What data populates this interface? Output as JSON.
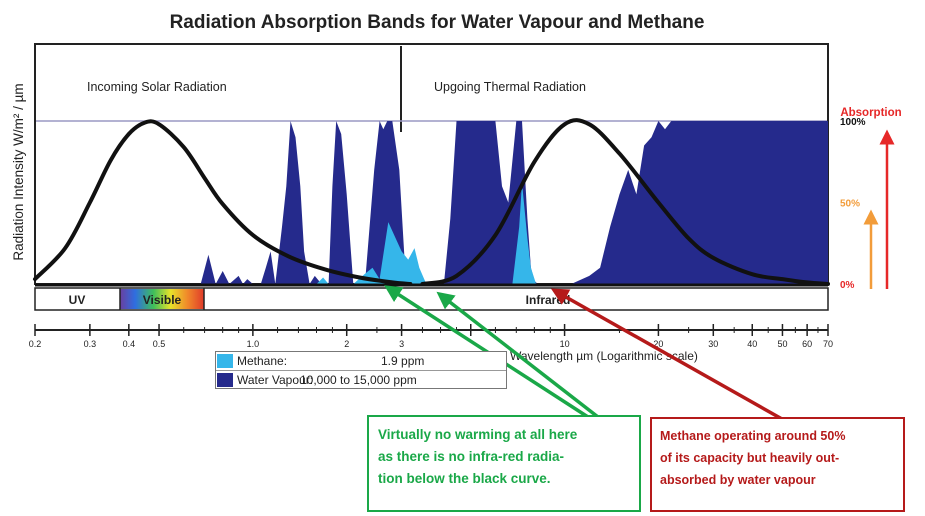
{
  "chart_data": {
    "type": "area",
    "title": "Radiation Absorption Bands for Water Vapour and Methane",
    "ylabel": "Radiation Intensity W/m² / µm",
    "xlabel": "Wavelength µm (Logarithmic scale)",
    "xscale": "log",
    "xlim": [
      0.2,
      70
    ],
    "x_ticks": [
      0.2,
      0.3,
      0.4,
      0.5,
      1.0,
      2,
      3,
      5,
      10,
      20,
      30,
      40,
      50,
      60,
      70
    ],
    "x_tick_labels": [
      "0.2",
      "0.3",
      "0.4",
      "0.5",
      "1.0",
      "2",
      "3",
      "",
      "10",
      "20",
      "30",
      "40",
      "50",
      "60",
      "70"
    ],
    "absorption_axis": {
      "title": "Absorption",
      "ticks": [
        {
          "value": 100,
          "label": "100%"
        },
        {
          "value": 50,
          "label": "50%"
        },
        {
          "value": 0,
          "label": "0%"
        }
      ]
    },
    "region_labels": [
      "Incoming Solar Radiation",
      "Upgoing Thermal Radiation"
    ],
    "band_labels": [
      "UV",
      "Visible",
      "Infrared"
    ],
    "band_edges_um": [
      0.2,
      0.4,
      0.7,
      70
    ],
    "curves": [
      {
        "name": "Solar emission (relative)",
        "x": [
          0.2,
          0.25,
          0.3,
          0.35,
          0.4,
          0.45,
          0.5,
          0.6,
          0.7,
          0.8,
          1.0,
          1.3,
          1.7,
          2.2,
          2.8,
          3.2
        ],
        "y": [
          3,
          22,
          50,
          76,
          92,
          99,
          98,
          84,
          65,
          49,
          30,
          17,
          9,
          4,
          1,
          0
        ]
      },
      {
        "name": "Thermal emission (relative)",
        "x": [
          3.5,
          4.5,
          6,
          8,
          10,
          12,
          15,
          20,
          25,
          30,
          40,
          50,
          60,
          70
        ],
        "y": [
          0,
          5,
          30,
          75,
          98,
          98,
          80,
          50,
          28,
          16,
          6,
          3,
          1,
          0
        ]
      }
    ],
    "series": [
      {
        "name": "Water Vapour",
        "color": "#252a8c",
        "unit": "absorption %",
        "x": [
          0.2,
          0.68,
          0.72,
          0.76,
          0.8,
          0.84,
          0.9,
          0.93,
          0.96,
          1.0,
          1.06,
          1.1,
          1.14,
          1.18,
          1.24,
          1.28,
          1.32,
          1.37,
          1.42,
          1.46,
          1.52,
          1.58,
          1.66,
          1.75,
          1.8,
          1.85,
          1.92,
          2.0,
          2.1,
          2.3,
          2.45,
          2.55,
          2.62,
          2.7,
          2.8,
          2.95,
          3.1,
          3.3,
          3.6,
          4.1,
          4.3,
          4.5,
          4.7,
          5.0,
          5.3,
          5.6,
          6.0,
          6.3,
          6.6,
          7.0,
          7.3,
          7.6,
          7.8,
          8.0,
          8.2,
          9.0,
          10.5,
          12.0,
          13.0,
          14.0,
          15.0,
          16.0,
          17.0,
          18.0,
          19.0,
          20.0,
          21.0,
          22.0,
          30.0,
          70.0
        ],
        "y": [
          0,
          0,
          18,
          0,
          8,
          0,
          5,
          0,
          3,
          0,
          0,
          10,
          20,
          0,
          35,
          60,
          100,
          90,
          60,
          20,
          0,
          5,
          0,
          0,
          60,
          100,
          92,
          55,
          0,
          5,
          70,
          100,
          95,
          100,
          100,
          70,
          0,
          0,
          0,
          0,
          40,
          100,
          100,
          100,
          100,
          100,
          100,
          60,
          50,
          100,
          100,
          40,
          10,
          2,
          0,
          0,
          0,
          5,
          10,
          35,
          55,
          70,
          55,
          85,
          90,
          100,
          95,
          100,
          100,
          100
        ]
      },
      {
        "name": "Methane",
        "color": "#35b6ea",
        "unit": "absorption %",
        "x": [
          0.2,
          1.6,
          1.68,
          1.75,
          2.1,
          2.28,
          2.42,
          2.55,
          2.72,
          3.0,
          3.15,
          3.3,
          3.42,
          3.6,
          6.8,
          7.15,
          7.3,
          7.45,
          7.6,
          7.8,
          8.1,
          70.0
        ],
        "y": [
          0,
          0,
          4,
          0,
          0,
          6,
          10,
          3,
          38,
          20,
          15,
          22,
          10,
          0,
          0,
          35,
          62,
          45,
          28,
          10,
          0,
          0
        ]
      }
    ],
    "legend": [
      {
        "name": "Methane:",
        "value": "1.9 ppm",
        "color": "#35b6ea"
      },
      {
        "name": "Water Vapour:",
        "value": "10,000 to 15,000 ppm",
        "color": "#252a8c"
      }
    ],
    "annotations": [
      {
        "text_lines": [
          "Virtually no warming at all here",
          "as  there is no infra-red radia-",
          "tion below the black curve."
        ],
        "color": "#1aa848",
        "points_to_um": [
          2.8,
          3.6
        ]
      },
      {
        "text_lines": [
          "Methane  operating around 50%",
          "of its capacity but heavily  out-",
          "absorbed by water vapour"
        ],
        "color": "#b51a1a",
        "points_to_um": [
          7.5
        ]
      }
    ]
  }
}
